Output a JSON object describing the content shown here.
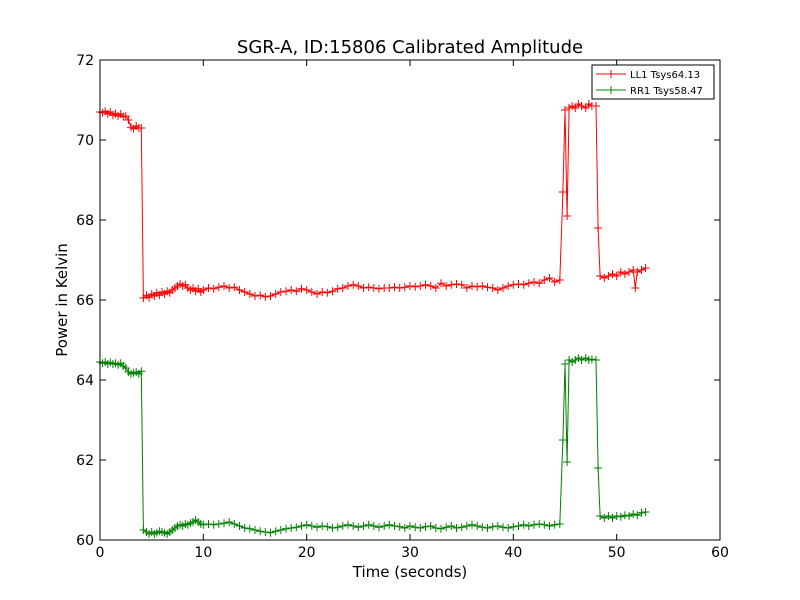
{
  "chart_data": {
    "type": "line",
    "title": "SGR-A, ID:15806 Calibrated Amplitude",
    "xlabel": "Time (seconds)",
    "ylabel": "Power in Kelvin",
    "xlim": [
      0,
      60
    ],
    "ylim": [
      60,
      72
    ],
    "xticks": [
      0,
      10,
      20,
      30,
      40,
      50,
      60
    ],
    "yticks": [
      60,
      62,
      64,
      66,
      68,
      70,
      72
    ],
    "grid": false,
    "legend_position": "top-right",
    "marker": "plus",
    "series": [
      {
        "name": "LL1 Tsys64.13",
        "color": "#ff0000",
        "points": [
          [
            0.0,
            70.7
          ],
          [
            0.25,
            70.68
          ],
          [
            0.5,
            70.72
          ],
          [
            0.75,
            70.65
          ],
          [
            1.0,
            70.7
          ],
          [
            1.25,
            70.62
          ],
          [
            1.5,
            70.66
          ],
          [
            1.75,
            70.6
          ],
          [
            2.0,
            70.65
          ],
          [
            2.25,
            70.58
          ],
          [
            2.5,
            70.6
          ],
          [
            2.75,
            70.5
          ],
          [
            3.0,
            70.32
          ],
          [
            3.25,
            70.28
          ],
          [
            3.5,
            70.35
          ],
          [
            3.75,
            70.3
          ],
          [
            4.0,
            70.3
          ],
          [
            4.2,
            66.05
          ],
          [
            4.5,
            66.12
          ],
          [
            4.75,
            66.06
          ],
          [
            5.0,
            66.15
          ],
          [
            5.25,
            66.1
          ],
          [
            5.5,
            66.18
          ],
          [
            5.75,
            66.12
          ],
          [
            6.0,
            66.2
          ],
          [
            6.25,
            66.15
          ],
          [
            6.5,
            66.22
          ],
          [
            6.75,
            66.18
          ],
          [
            7.0,
            66.25
          ],
          [
            7.25,
            66.3
          ],
          [
            7.5,
            66.35
          ],
          [
            7.75,
            66.4
          ],
          [
            8.0,
            66.35
          ],
          [
            8.25,
            66.38
          ],
          [
            8.5,
            66.3
          ],
          [
            8.75,
            66.25
          ],
          [
            9.0,
            66.3
          ],
          [
            9.25,
            66.22
          ],
          [
            9.5,
            66.28
          ],
          [
            9.75,
            66.2
          ],
          [
            10.0,
            66.25
          ],
          [
            10.5,
            66.3
          ],
          [
            11.0,
            66.28
          ],
          [
            11.5,
            66.32
          ],
          [
            12.0,
            66.35
          ],
          [
            12.5,
            66.3
          ],
          [
            13.0,
            66.32
          ],
          [
            13.5,
            66.25
          ],
          [
            14.0,
            66.2
          ],
          [
            14.5,
            66.15
          ],
          [
            15.0,
            66.1
          ],
          [
            15.5,
            66.12
          ],
          [
            16.0,
            66.08
          ],
          [
            16.5,
            66.1
          ],
          [
            17.0,
            66.15
          ],
          [
            17.5,
            66.2
          ],
          [
            18.0,
            66.22
          ],
          [
            18.5,
            66.25
          ],
          [
            19.0,
            66.22
          ],
          [
            19.5,
            66.28
          ],
          [
            20.0,
            66.25
          ],
          [
            20.5,
            66.2
          ],
          [
            21.0,
            66.15
          ],
          [
            21.5,
            66.2
          ],
          [
            22.0,
            66.18
          ],
          [
            22.5,
            66.22
          ],
          [
            23.0,
            66.28
          ],
          [
            23.5,
            66.3
          ],
          [
            24.0,
            66.35
          ],
          [
            24.5,
            66.38
          ],
          [
            25.0,
            66.35
          ],
          [
            25.5,
            66.3
          ],
          [
            26.0,
            66.32
          ],
          [
            26.5,
            66.3
          ],
          [
            27.0,
            66.28
          ],
          [
            27.5,
            66.3
          ],
          [
            28.0,
            66.3
          ],
          [
            28.5,
            66.32
          ],
          [
            29.0,
            66.3
          ],
          [
            29.5,
            66.32
          ],
          [
            30.0,
            66.35
          ],
          [
            30.5,
            66.33
          ],
          [
            31.0,
            66.35
          ],
          [
            31.5,
            66.38
          ],
          [
            32.0,
            66.35
          ],
          [
            32.5,
            66.3
          ],
          [
            33.0,
            66.42
          ],
          [
            33.5,
            66.35
          ],
          [
            34.0,
            66.38
          ],
          [
            34.5,
            66.4
          ],
          [
            35.0,
            66.38
          ],
          [
            35.5,
            66.3
          ],
          [
            36.0,
            66.35
          ],
          [
            36.5,
            66.33
          ],
          [
            37.0,
            66.35
          ],
          [
            37.5,
            66.32
          ],
          [
            38.0,
            66.3
          ],
          [
            38.5,
            66.25
          ],
          [
            39.0,
            66.3
          ],
          [
            39.5,
            66.35
          ],
          [
            40.0,
            66.38
          ],
          [
            40.5,
            66.4
          ],
          [
            41.0,
            66.38
          ],
          [
            41.5,
            66.42
          ],
          [
            42.0,
            66.45
          ],
          [
            42.5,
            66.42
          ],
          [
            43.0,
            66.5
          ],
          [
            43.5,
            66.55
          ],
          [
            44.0,
            66.45
          ],
          [
            44.5,
            66.5
          ],
          [
            44.8,
            68.7
          ],
          [
            45.0,
            70.75
          ],
          [
            45.2,
            68.1
          ],
          [
            45.4,
            70.8
          ],
          [
            45.7,
            70.85
          ],
          [
            46.0,
            70.8
          ],
          [
            46.3,
            70.9
          ],
          [
            46.6,
            70.85
          ],
          [
            47.0,
            70.8
          ],
          [
            47.3,
            70.9
          ],
          [
            47.6,
            70.85
          ],
          [
            48.0,
            70.85
          ],
          [
            48.2,
            67.8
          ],
          [
            48.4,
            66.6
          ],
          [
            48.8,
            66.55
          ],
          [
            49.2,
            66.6
          ],
          [
            49.6,
            66.65
          ],
          [
            50.0,
            66.6
          ],
          [
            50.4,
            66.7
          ],
          [
            50.8,
            66.65
          ],
          [
            51.2,
            66.7
          ],
          [
            51.6,
            66.75
          ],
          [
            51.8,
            66.3
          ],
          [
            52.0,
            66.7
          ],
          [
            52.4,
            66.75
          ],
          [
            52.8,
            66.8
          ]
        ]
      },
      {
        "name": "RR1 Tsys58.47",
        "color": "#008000",
        "points": [
          [
            0.0,
            64.45
          ],
          [
            0.25,
            64.42
          ],
          [
            0.5,
            64.45
          ],
          [
            0.75,
            64.4
          ],
          [
            1.0,
            64.44
          ],
          [
            1.25,
            64.4
          ],
          [
            1.5,
            64.42
          ],
          [
            1.75,
            64.38
          ],
          [
            2.0,
            64.42
          ],
          [
            2.25,
            64.35
          ],
          [
            2.5,
            64.3
          ],
          [
            2.75,
            64.2
          ],
          [
            3.0,
            64.15
          ],
          [
            3.25,
            64.18
          ],
          [
            3.5,
            64.2
          ],
          [
            3.75,
            64.15
          ],
          [
            4.0,
            64.22
          ],
          [
            4.2,
            60.25
          ],
          [
            4.5,
            60.2
          ],
          [
            4.75,
            60.15
          ],
          [
            5.0,
            60.2
          ],
          [
            5.25,
            60.15
          ],
          [
            5.5,
            60.18
          ],
          [
            5.75,
            60.22
          ],
          [
            6.0,
            60.2
          ],
          [
            6.25,
            60.18
          ],
          [
            6.5,
            60.15
          ],
          [
            6.75,
            60.2
          ],
          [
            7.0,
            60.25
          ],
          [
            7.25,
            60.3
          ],
          [
            7.5,
            60.35
          ],
          [
            7.75,
            60.38
          ],
          [
            8.0,
            60.35
          ],
          [
            8.25,
            60.4
          ],
          [
            8.5,
            60.38
          ],
          [
            8.75,
            60.42
          ],
          [
            9.0,
            60.45
          ],
          [
            9.25,
            60.5
          ],
          [
            9.5,
            60.45
          ],
          [
            9.75,
            60.4
          ],
          [
            10.0,
            60.38
          ],
          [
            10.5,
            60.4
          ],
          [
            11.0,
            60.38
          ],
          [
            11.5,
            60.4
          ],
          [
            12.0,
            60.42
          ],
          [
            12.5,
            60.45
          ],
          [
            13.0,
            60.4
          ],
          [
            13.5,
            60.35
          ],
          [
            14.0,
            60.3
          ],
          [
            14.5,
            60.28
          ],
          [
            15.0,
            60.25
          ],
          [
            15.5,
            60.22
          ],
          [
            16.0,
            60.2
          ],
          [
            16.5,
            60.18
          ],
          [
            17.0,
            60.22
          ],
          [
            17.5,
            60.25
          ],
          [
            18.0,
            60.28
          ],
          [
            18.5,
            60.3
          ],
          [
            19.0,
            60.32
          ],
          [
            19.5,
            60.35
          ],
          [
            20.0,
            60.38
          ],
          [
            20.5,
            60.35
          ],
          [
            21.0,
            60.32
          ],
          [
            21.5,
            60.35
          ],
          [
            22.0,
            60.33
          ],
          [
            22.5,
            60.3
          ],
          [
            23.0,
            60.32
          ],
          [
            23.5,
            60.35
          ],
          [
            24.0,
            60.38
          ],
          [
            24.5,
            60.35
          ],
          [
            25.0,
            60.32
          ],
          [
            25.5,
            60.35
          ],
          [
            26.0,
            60.38
          ],
          [
            26.5,
            60.35
          ],
          [
            27.0,
            60.32
          ],
          [
            27.5,
            60.35
          ],
          [
            28.0,
            60.38
          ],
          [
            28.5,
            60.35
          ],
          [
            29.0,
            60.33
          ],
          [
            29.5,
            60.3
          ],
          [
            30.0,
            60.35
          ],
          [
            30.5,
            60.32
          ],
          [
            31.0,
            60.3
          ],
          [
            31.5,
            60.33
          ],
          [
            32.0,
            60.35
          ],
          [
            32.5,
            60.3
          ],
          [
            33.0,
            60.28
          ],
          [
            33.5,
            60.32
          ],
          [
            34.0,
            60.35
          ],
          [
            34.5,
            60.3
          ],
          [
            35.0,
            60.32
          ],
          [
            35.5,
            60.35
          ],
          [
            36.0,
            60.38
          ],
          [
            36.5,
            60.35
          ],
          [
            37.0,
            60.32
          ],
          [
            37.5,
            60.3
          ],
          [
            38.0,
            60.33
          ],
          [
            38.5,
            60.35
          ],
          [
            39.0,
            60.32
          ],
          [
            39.5,
            60.3
          ],
          [
            40.0,
            60.33
          ],
          [
            40.5,
            60.35
          ],
          [
            41.0,
            60.38
          ],
          [
            41.5,
            60.35
          ],
          [
            42.0,
            60.38
          ],
          [
            42.5,
            60.4
          ],
          [
            43.0,
            60.38
          ],
          [
            43.5,
            60.35
          ],
          [
            44.0,
            60.38
          ],
          [
            44.5,
            60.4
          ],
          [
            44.8,
            62.5
          ],
          [
            45.0,
            64.4
          ],
          [
            45.2,
            61.95
          ],
          [
            45.4,
            64.5
          ],
          [
            45.7,
            64.45
          ],
          [
            46.0,
            64.5
          ],
          [
            46.3,
            64.55
          ],
          [
            46.6,
            64.5
          ],
          [
            47.0,
            64.55
          ],
          [
            47.3,
            64.5
          ],
          [
            47.6,
            64.52
          ],
          [
            48.0,
            64.5
          ],
          [
            48.2,
            61.8
          ],
          [
            48.4,
            60.6
          ],
          [
            48.8,
            60.55
          ],
          [
            49.2,
            60.6
          ],
          [
            49.6,
            60.55
          ],
          [
            50.0,
            60.6
          ],
          [
            50.4,
            60.58
          ],
          [
            50.8,
            60.62
          ],
          [
            51.2,
            60.6
          ],
          [
            51.6,
            60.65
          ],
          [
            52.0,
            60.62
          ],
          [
            52.4,
            60.68
          ],
          [
            52.8,
            60.7
          ]
        ]
      }
    ]
  }
}
